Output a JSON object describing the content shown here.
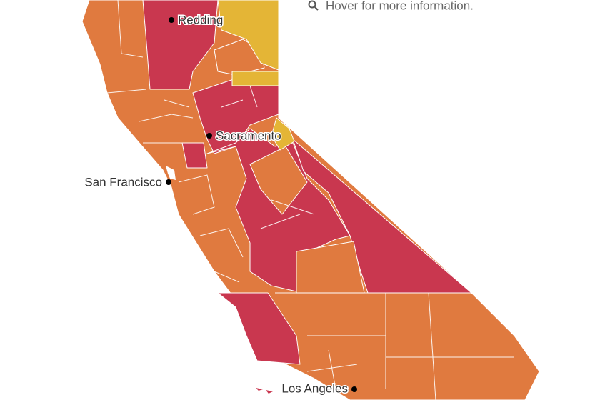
{
  "hint": "Hover for more information.",
  "cities": [
    {
      "name": "Redding"
    },
    {
      "name": "Sacramento"
    },
    {
      "name": "San Francisco"
    },
    {
      "name": "Los Angeles"
    }
  ]
}
